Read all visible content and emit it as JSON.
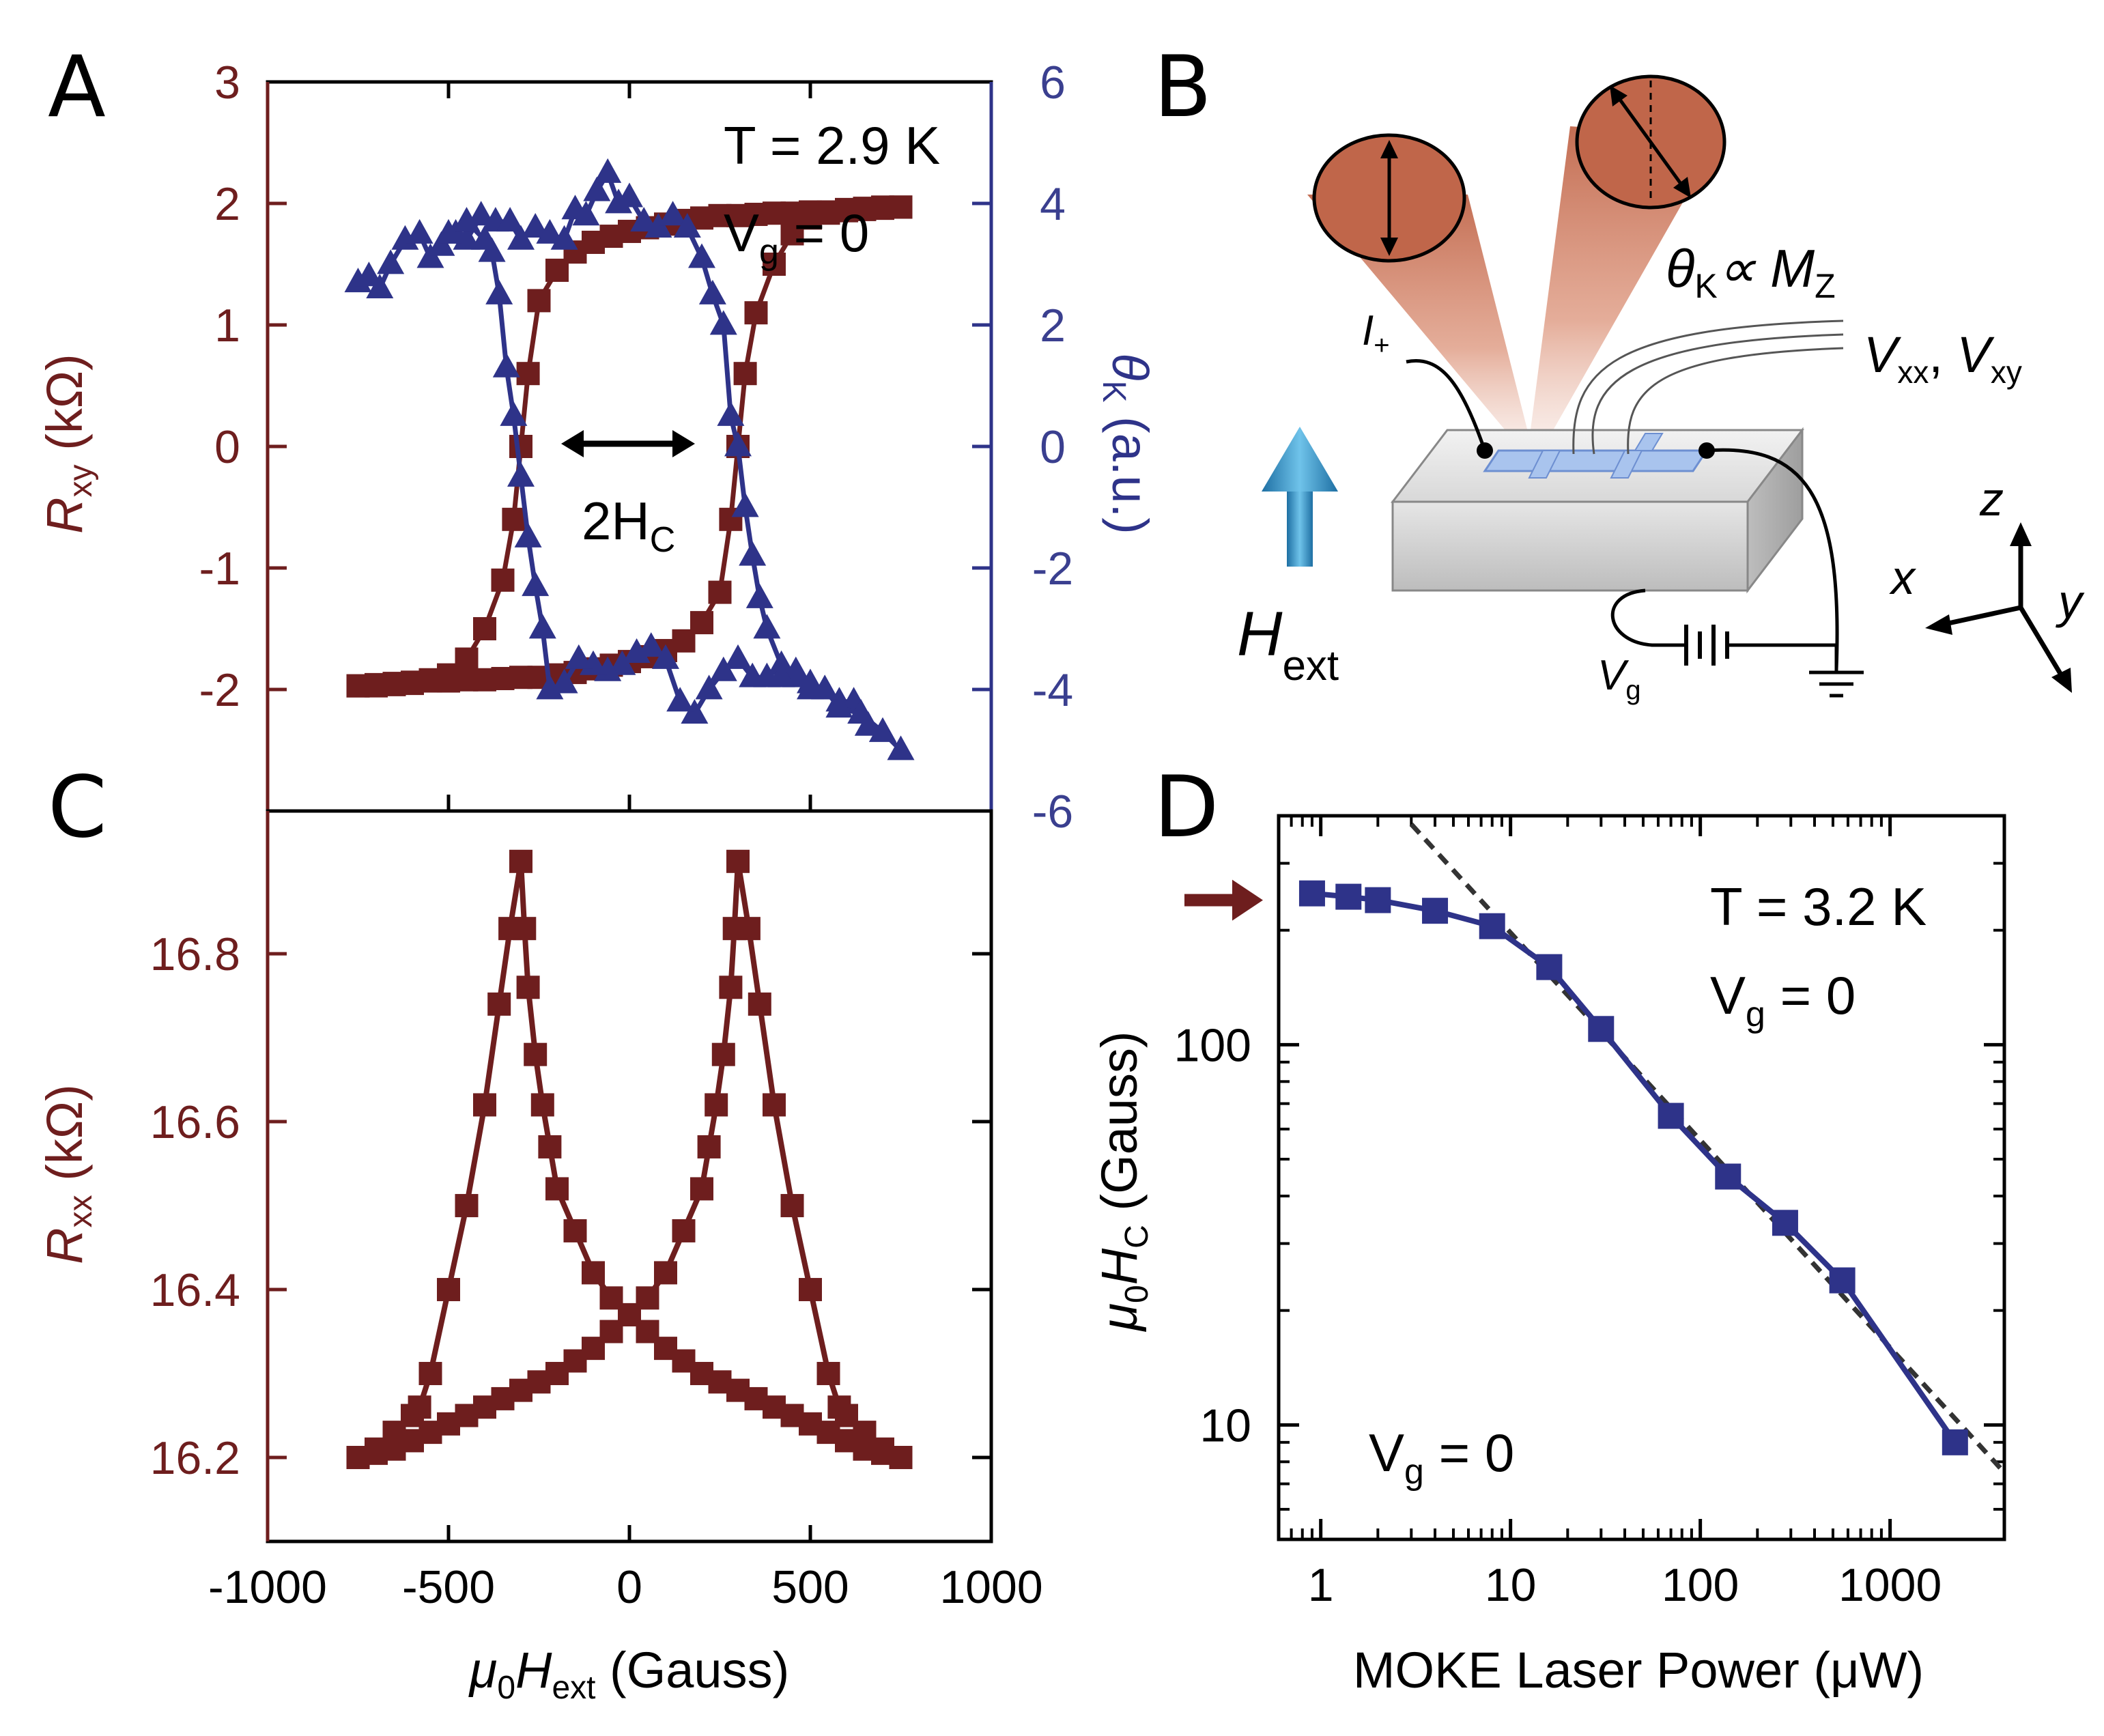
{
  "panels": {
    "A": {
      "letter": "A"
    },
    "B": {
      "letter": "B"
    },
    "C": {
      "letter": "C"
    },
    "D": {
      "letter": "D"
    }
  },
  "colors": {
    "red": "#6e1e1e",
    "blue": "#2e3389",
    "beam": "#c0664a",
    "dashed": "#333333",
    "arrow": "#3a9bd0"
  },
  "chart_data": [
    {
      "id": "A",
      "type": "scatter",
      "annotations": {
        "temperature": "T = 2.9 K",
        "gate_main": "V",
        "gate_sub": "g",
        "gate_rest": " = 0",
        "coercive": "2H",
        "coercive_sub": "C"
      },
      "xlim": [
        -1000,
        1000
      ],
      "ylabel_left": {
        "main": "R",
        "sub": "xy",
        "unit": " (kΩ)"
      },
      "ylim_left": [
        -3,
        3
      ],
      "yticks_left": [
        "3",
        "2",
        "1",
        "0",
        "-1",
        "-2"
      ],
      "ylabel_right": {
        "main": "θ",
        "sub": "K",
        "unit": " (a.u.)"
      },
      "ylim_right": [
        -6,
        6
      ],
      "yticks_right": [
        "6",
        "4",
        "2",
        "0",
        "-2",
        "-4",
        "-6"
      ],
      "series": [
        {
          "axis": "left",
          "marker": "square",
          "up_sweep": [
            [
              -750,
              -1.97
            ],
            [
              -700,
              -1.96
            ],
            [
              -650,
              -1.95
            ],
            [
              -600,
              -1.94
            ],
            [
              -550,
              -1.93
            ],
            [
              -500,
              -1.93
            ],
            [
              -450,
              -1.92
            ],
            [
              -400,
              -1.92
            ],
            [
              -350,
              -1.91
            ],
            [
              -300,
              -1.9
            ],
            [
              -250,
              -1.9
            ],
            [
              -200,
              -1.88
            ],
            [
              -150,
              -1.86
            ],
            [
              -100,
              -1.83
            ],
            [
              -50,
              -1.8
            ],
            [
              0,
              -1.77
            ],
            [
              50,
              -1.73
            ],
            [
              100,
              -1.68
            ],
            [
              150,
              -1.6
            ],
            [
              200,
              -1.45
            ],
            [
              250,
              -1.2
            ],
            [
              280,
              -0.6
            ],
            [
              300,
              0.0
            ],
            [
              320,
              0.6
            ],
            [
              350,
              1.1
            ],
            [
              400,
              1.5
            ],
            [
              450,
              1.75
            ],
            [
              500,
              1.88
            ],
            [
              550,
              1.92
            ],
            [
              600,
              1.95
            ],
            [
              650,
              1.96
            ],
            [
              700,
              1.97
            ],
            [
              750,
              1.97
            ]
          ],
          "down_sweep": [
            [
              750,
              1.97
            ],
            [
              700,
              1.96
            ],
            [
              650,
              1.95
            ],
            [
              600,
              1.94
            ],
            [
              550,
              1.93
            ],
            [
              500,
              1.93
            ],
            [
              450,
              1.92
            ],
            [
              400,
              1.92
            ],
            [
              350,
              1.91
            ],
            [
              300,
              1.9
            ],
            [
              250,
              1.9
            ],
            [
              200,
              1.88
            ],
            [
              150,
              1.86
            ],
            [
              100,
              1.83
            ],
            [
              50,
              1.8
            ],
            [
              0,
              1.77
            ],
            [
              -50,
              1.73
            ],
            [
              -100,
              1.68
            ],
            [
              -150,
              1.6
            ],
            [
              -200,
              1.45
            ],
            [
              -250,
              1.2
            ],
            [
              -280,
              0.6
            ],
            [
              -300,
              0.0
            ],
            [
              -320,
              -0.6
            ],
            [
              -350,
              -1.1
            ],
            [
              -400,
              -1.5
            ],
            [
              -450,
              -1.75
            ],
            [
              -500,
              -1.88
            ],
            [
              -550,
              -1.92
            ],
            [
              -600,
              -1.95
            ],
            [
              -650,
              -1.96
            ],
            [
              -700,
              -1.97
            ],
            [
              -750,
              -1.97
            ]
          ]
        },
        {
          "axis": "right",
          "marker": "triangle",
          "up_sweep": [
            [
              -750,
              2.7
            ],
            [
              -720,
              2.8
            ],
            [
              -690,
              2.6
            ],
            [
              -660,
              3.0
            ],
            [
              -620,
              3.4
            ],
            [
              -580,
              3.5
            ],
            [
              -550,
              3.1
            ],
            [
              -520,
              3.3
            ],
            [
              -480,
              3.5
            ],
            [
              -450,
              3.4
            ],
            [
              -410,
              3.8
            ],
            [
              -370,
              3.7
            ],
            [
              -330,
              3.7
            ],
            [
              -300,
              3.4
            ],
            [
              -260,
              3.6
            ],
            [
              -220,
              3.5
            ],
            [
              -180,
              3.4
            ],
            [
              -150,
              3.9
            ],
            [
              -120,
              3.8
            ],
            [
              -90,
              4.2
            ],
            [
              -60,
              4.5
            ],
            [
              -30,
              4.0
            ],
            [
              0,
              4.1
            ],
            [
              40,
              3.7
            ],
            [
              80,
              3.6
            ],
            [
              120,
              3.8
            ],
            [
              160,
              3.6
            ],
            [
              200,
              3.1
            ],
            [
              230,
              2.5
            ],
            [
              260,
              2.0
            ],
            [
              280,
              0.5
            ],
            [
              300,
              0.0
            ],
            [
              320,
              -1.0
            ],
            [
              340,
              -1.8
            ],
            [
              360,
              -2.5
            ],
            [
              380,
              -3.0
            ],
            [
              420,
              -3.6
            ],
            [
              460,
              -3.8
            ],
            [
              500,
              -4.0
            ],
            [
              540,
              -4.0
            ],
            [
              580,
              -4.2
            ],
            [
              620,
              -4.2
            ],
            [
              660,
              -4.6
            ],
            [
              700,
              -4.7
            ],
            [
              750,
              -5.0
            ]
          ],
          "down_sweep": [
            [
              700,
              -4.7
            ],
            [
              640,
              -4.4
            ],
            [
              580,
              -4.3
            ],
            [
              540,
              -4.0
            ],
            [
              500,
              -3.9
            ],
            [
              460,
              -3.7
            ],
            [
              420,
              -3.8
            ],
            [
              380,
              -3.8
            ],
            [
              340,
              -3.8
            ],
            [
              300,
              -3.5
            ],
            [
              260,
              -3.7
            ],
            [
              220,
              -4.0
            ],
            [
              180,
              -4.4
            ],
            [
              140,
              -4.2
            ],
            [
              100,
              -3.5
            ],
            [
              60,
              -3.3
            ],
            [
              20,
              -3.4
            ],
            [
              -20,
              -3.6
            ],
            [
              -60,
              -3.7
            ],
            [
              -100,
              -3.6
            ],
            [
              -140,
              -3.5
            ],
            [
              -180,
              -3.9
            ],
            [
              -220,
              -4.0
            ],
            [
              -240,
              -3.0
            ],
            [
              -260,
              -2.3
            ],
            [
              -280,
              -1.5
            ],
            [
              -300,
              -0.5
            ],
            [
              -320,
              0.5
            ],
            [
              -340,
              1.3
            ],
            [
              -360,
              2.5
            ],
            [
              -380,
              3.2
            ],
            [
              -400,
              3.4
            ],
            [
              -450,
              3.7
            ],
            [
              -500,
              3.5
            ]
          ]
        }
      ]
    },
    {
      "id": "C",
      "type": "line",
      "xlabel": {
        "main": "μ",
        "sub0": "0",
        "mid": "H",
        "sub": "ext",
        "unit": " (Gauss)"
      },
      "xlim": [
        -1000,
        1000
      ],
      "xticks": [
        "-1000",
        "-500",
        "0",
        "500",
        "1000"
      ],
      "ylabel": {
        "main": "R",
        "sub": "xx",
        "unit": " (kΩ)"
      },
      "ylim": [
        16.1,
        16.97
      ],
      "yticks": [
        "16.8",
        "16.6",
        "16.4",
        "16.2"
      ],
      "series": [
        {
          "marker": "square",
          "sweep_1": [
            [
              -750,
              16.2
            ],
            [
              -700,
              16.205
            ],
            [
              -650,
              16.21
            ],
            [
              -600,
              16.22
            ],
            [
              -550,
              16.23
            ],
            [
              -500,
              16.24
            ],
            [
              -450,
              16.25
            ],
            [
              -400,
              16.26
            ],
            [
              -350,
              16.27
            ],
            [
              -300,
              16.28
            ],
            [
              -250,
              16.29
            ],
            [
              -200,
              16.3
            ],
            [
              -150,
              16.315
            ],
            [
              -100,
              16.33
            ],
            [
              -50,
              16.35
            ],
            [
              0,
              16.37
            ],
            [
              50,
              16.39
            ],
            [
              100,
              16.42
            ],
            [
              150,
              16.47
            ],
            [
              200,
              16.52
            ],
            [
              220,
              16.57
            ],
            [
              240,
              16.62
            ],
            [
              260,
              16.68
            ],
            [
              280,
              16.76
            ],
            [
              290,
              16.83
            ],
            [
              300,
              16.91
            ],
            [
              330,
              16.83
            ],
            [
              360,
              16.74
            ],
            [
              400,
              16.62
            ],
            [
              450,
              16.5
            ],
            [
              500,
              16.4
            ],
            [
              550,
              16.3
            ],
            [
              580,
              16.26
            ],
            [
              600,
              16.25
            ],
            [
              650,
              16.23
            ],
            [
              700,
              16.21
            ],
            [
              750,
              16.2
            ]
          ],
          "sweep_2": [
            [
              750,
              16.2
            ],
            [
              700,
              16.205
            ],
            [
              650,
              16.21
            ],
            [
              600,
              16.22
            ],
            [
              550,
              16.23
            ],
            [
              500,
              16.24
            ],
            [
              450,
              16.25
            ],
            [
              400,
              16.26
            ],
            [
              350,
              16.27
            ],
            [
              300,
              16.28
            ],
            [
              250,
              16.29
            ],
            [
              200,
              16.3
            ],
            [
              150,
              16.315
            ],
            [
              100,
              16.33
            ],
            [
              50,
              16.35
            ],
            [
              0,
              16.37
            ],
            [
              -50,
              16.39
            ],
            [
              -100,
              16.42
            ],
            [
              -150,
              16.47
            ],
            [
              -200,
              16.52
            ],
            [
              -220,
              16.57
            ],
            [
              -240,
              16.62
            ],
            [
              -260,
              16.68
            ],
            [
              -280,
              16.76
            ],
            [
              -290,
              16.83
            ],
            [
              -300,
              16.91
            ],
            [
              -330,
              16.83
            ],
            [
              -360,
              16.74
            ],
            [
              -400,
              16.62
            ],
            [
              -450,
              16.5
            ],
            [
              -500,
              16.4
            ],
            [
              -550,
              16.3
            ],
            [
              -580,
              16.26
            ],
            [
              -600,
              16.25
            ],
            [
              -650,
              16.23
            ],
            [
              -700,
              16.21
            ],
            [
              -750,
              16.2
            ]
          ]
        }
      ]
    },
    {
      "id": "D",
      "type": "line",
      "scale": "log-log",
      "annotations": {
        "temperature": "T = 3.2 K",
        "gate_main": "V",
        "gate_sub": "g",
        "gate_rest": " = 0",
        "gate_bottom_main": "V",
        "gate_bottom_sub": "g",
        "gate_bottom_rest": " = 0"
      },
      "xlabel": "MOKE Laser Power (μW)",
      "xlim": [
        0.6,
        4000
      ],
      "xticks": [
        "1",
        "10",
        "100",
        "1000"
      ],
      "xtick_values": [
        1,
        10,
        100,
        1000
      ],
      "ylabel": {
        "main": "μ",
        "sub0": "0",
        "mid": "H",
        "sub": "C",
        "unit": " (Gauss)"
      },
      "ylim": [
        5,
        400
      ],
      "yticks": [
        "100",
        "10"
      ],
      "ytick_values": [
        100,
        10
      ],
      "series": [
        {
          "marker": "square",
          "points": [
            [
              0.9,
              250
            ],
            [
              1.4,
              245
            ],
            [
              2.0,
              240
            ],
            [
              4.0,
              225
            ],
            [
              8.0,
              205
            ],
            [
              16,
              160
            ],
            [
              30,
              110
            ],
            [
              70,
              65
            ],
            [
              140,
              45
            ],
            [
              280,
              34
            ],
            [
              560,
              24
            ],
            [
              2200,
              9
            ]
          ]
        },
        {
          "style": "dashed",
          "points": [
            [
              3,
              380
            ],
            [
              4000,
              7.5
            ]
          ]
        }
      ],
      "arrow_marker_value": 240
    }
  ],
  "schematic": {
    "kerr_main": "θ",
    "kerr_sub": "K",
    "kerr_rest": "∝ M",
    "kerr_sub2": "Z",
    "current_main": "I",
    "current_sub": "+",
    "voltage_main1": "V",
    "voltage_sub1": "xx",
    "voltage_sep": ", ",
    "voltage_main2": "V",
    "voltage_sub2": "xy",
    "field_main": "H",
    "field_sub": "ext",
    "gate_main": "V",
    "gate_sub": "g",
    "axis_x": "x",
    "axis_y": "y",
    "axis_z": "z"
  }
}
